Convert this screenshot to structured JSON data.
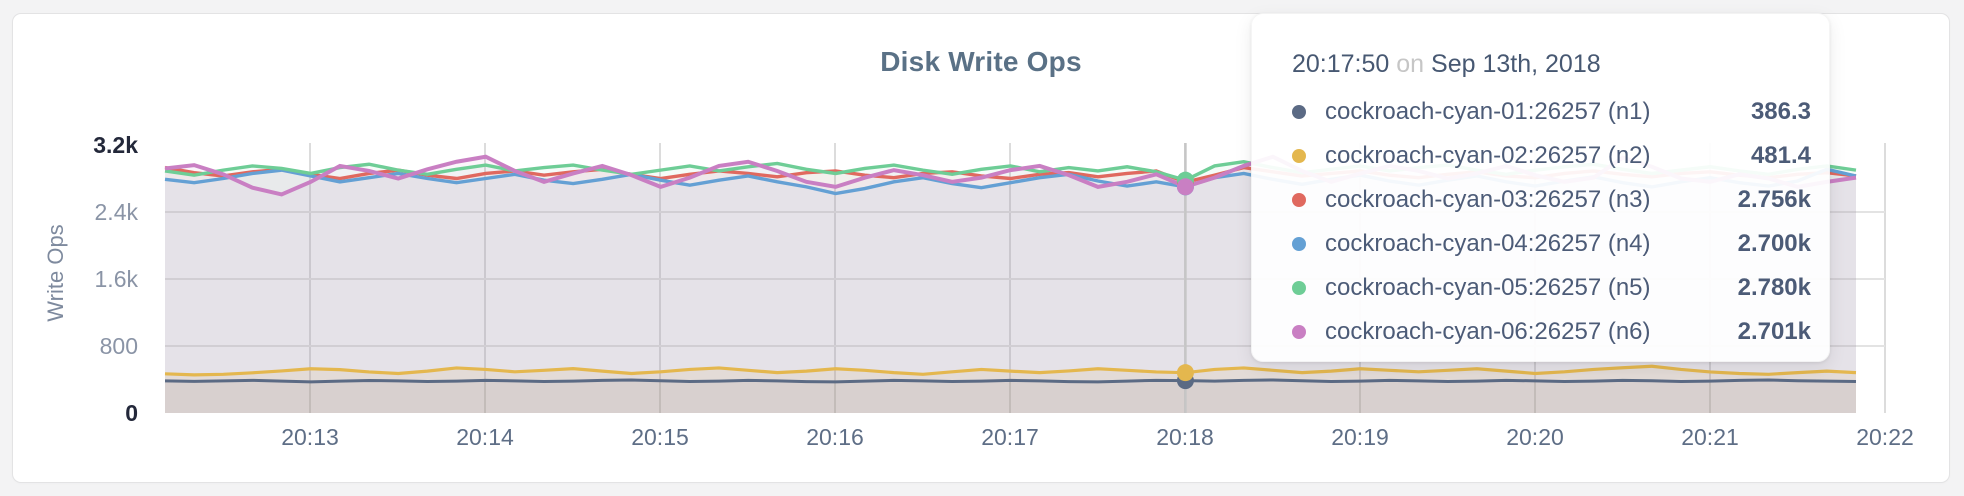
{
  "chart": {
    "title": "Disk Write Ops",
    "y_axis_label": "Write Ops",
    "y_ticks": [
      {
        "label": "3.2k",
        "value": 3200
      },
      {
        "label": "2.4k",
        "value": 2400
      },
      {
        "label": "1.6k",
        "value": 1600
      },
      {
        "label": "800",
        "value": 800
      },
      {
        "label": "0",
        "value": 0
      }
    ],
    "x_ticks": [
      "20:13",
      "20:14",
      "20:15",
      "20:16",
      "20:17",
      "20:18",
      "20:19",
      "20:20",
      "20:21",
      "20:22"
    ]
  },
  "tooltip": {
    "time": "20:17:50",
    "separator": "on",
    "date": "Sep 13th, 2018",
    "rows": [
      {
        "label": "cockroach-cyan-01:26257 (n1)",
        "value": "386.3",
        "color": "#5b6a84"
      },
      {
        "label": "cockroach-cyan-02:26257 (n2)",
        "value": "481.4",
        "color": "#e4b74e"
      },
      {
        "label": "cockroach-cyan-03:26257 (n3)",
        "value": "2.756k",
        "color": "#e0695f"
      },
      {
        "label": "cockroach-cyan-04:26257 (n4)",
        "value": "2.700k",
        "color": "#64a0d4"
      },
      {
        "label": "cockroach-cyan-05:26257 (n5)",
        "value": "2.780k",
        "color": "#6ecd96"
      },
      {
        "label": "cockroach-cyan-06:26257 (n6)",
        "value": "2.701k",
        "color": "#c97fc3"
      }
    ]
  },
  "chart_data": {
    "type": "line",
    "title": "Disk Write Ops",
    "xlabel": "",
    "ylabel": "Write Ops",
    "ylim": [
      0,
      3200
    ],
    "grid": true,
    "x_start_time": "20:12:00",
    "x_step_seconds": 10,
    "x_tick_labels": [
      "20:13",
      "20:14",
      "20:15",
      "20:16",
      "20:17",
      "20:18",
      "20:19",
      "20:20",
      "20:21",
      "20:22"
    ],
    "hover": {
      "index": 35,
      "time": "20:17:50",
      "date": "Sep 13th, 2018"
    },
    "series": [
      {
        "name": "cockroach-cyan-01:26257 (n1)",
        "color": "#5b6a84",
        "fill_opacity": 0.1,
        "hover_value": 386.3,
        "values": [
          383,
          377,
          384,
          390,
          381,
          372,
          380,
          388,
          384,
          376,
          381,
          389,
          384,
          376,
          380,
          389,
          394,
          385,
          376,
          381,
          389,
          384,
          375,
          371,
          380,
          389,
          384,
          376,
          381,
          389,
          384,
          375,
          371,
          381,
          390,
          386.3,
          381,
          390,
          394,
          385,
          376,
          381,
          389,
          384,
          376,
          381,
          389,
          384,
          376,
          381,
          390,
          385,
          376,
          381,
          390,
          394,
          385,
          380,
          376
        ]
      },
      {
        "name": "cockroach-cyan-02:26257 (n2)",
        "color": "#e4b74e",
        "fill_opacity": 0.12,
        "hover_value": 481.4,
        "values": [
          468,
          455,
          462,
          480,
          502,
          528,
          518,
          490,
          472,
          500,
          538,
          520,
          492,
          510,
          530,
          500,
          472,
          492,
          520,
          538,
          510,
          482,
          500,
          528,
          510,
          482,
          462,
          492,
          520,
          500,
          482,
          502,
          528,
          510,
          490,
          481.4,
          520,
          538,
          510,
          482,
          500,
          528,
          510,
          492,
          510,
          528,
          500,
          472,
          492,
          520,
          540,
          558,
          520,
          490,
          472,
          462,
          482,
          500,
          482
        ]
      },
      {
        "name": "cockroach-cyan-03:26257 (n3)",
        "color": "#e0695f",
        "fill_opacity": 0.07,
        "hover_value": 2756,
        "values": [
          2930,
          2870,
          2830,
          2880,
          2910,
          2850,
          2800,
          2860,
          2900,
          2840,
          2800,
          2860,
          2890,
          2840,
          2880,
          2910,
          2850,
          2800,
          2850,
          2890,
          2860,
          2820,
          2870,
          2890,
          2840,
          2810,
          2860,
          2880,
          2830,
          2800,
          2850,
          2870,
          2820,
          2860,
          2890,
          2756,
          2840,
          2930,
          2880,
          2830,
          2860,
          2890,
          2840,
          2810,
          2850,
          2880,
          2830,
          2810,
          2860,
          2890,
          2850,
          2820,
          2860,
          2880,
          2840,
          2810,
          2850,
          2870,
          2830
        ]
      },
      {
        "name": "cockroach-cyan-04:26257 (n4)",
        "color": "#64a0d4",
        "fill_opacity": 0.07,
        "hover_value": 2700,
        "values": [
          2790,
          2750,
          2800,
          2860,
          2900,
          2830,
          2760,
          2810,
          2860,
          2800,
          2750,
          2800,
          2850,
          2780,
          2740,
          2790,
          2850,
          2780,
          2720,
          2780,
          2830,
          2760,
          2700,
          2620,
          2680,
          2760,
          2810,
          2740,
          2690,
          2750,
          2810,
          2850,
          2770,
          2710,
          2760,
          2700,
          2810,
          2860,
          2790,
          2730,
          2790,
          2840,
          2770,
          2720,
          2780,
          2830,
          2760,
          2710,
          2770,
          2820,
          2750,
          2700,
          2760,
          2810,
          2750,
          2710,
          2770,
          2910,
          2830
        ]
      },
      {
        "name": "cockroach-cyan-05:26257 (n5)",
        "color": "#6ecd96",
        "fill_opacity": 0.07,
        "hover_value": 2780,
        "values": [
          2890,
          2840,
          2900,
          2950,
          2920,
          2860,
          2930,
          2970,
          2900,
          2850,
          2910,
          2960,
          2890,
          2930,
          2960,
          2900,
          2850,
          2900,
          2950,
          2890,
          2940,
          2980,
          2910,
          2860,
          2920,
          2960,
          2900,
          2850,
          2910,
          2950,
          2880,
          2930,
          2890,
          2940,
          2880,
          2780,
          2950,
          3000,
          2930,
          2870,
          2910,
          2950,
          2890,
          2930,
          2960,
          2900,
          2850,
          2900,
          2940,
          2970,
          2910,
          2860,
          2900,
          2940,
          2890,
          2850,
          2910,
          2950,
          2900
        ]
      },
      {
        "name": "cockroach-cyan-06:26257 (n6)",
        "color": "#c97fc3",
        "fill_opacity": 0.07,
        "hover_value": 2701,
        "values": [
          2920,
          2960,
          2850,
          2690,
          2610,
          2760,
          2950,
          2890,
          2800,
          2910,
          3000,
          3060,
          2890,
          2760,
          2860,
          2950,
          2840,
          2700,
          2810,
          2950,
          3000,
          2890,
          2760,
          2700,
          2810,
          2900,
          2840,
          2760,
          2810,
          2900,
          2950,
          2840,
          2700,
          2760,
          2850,
          2701,
          2810,
          2950,
          3060,
          2890,
          2760,
          2860,
          2950,
          2890,
          2800,
          2860,
          2950,
          2840,
          2760,
          2810,
          3050,
          2940,
          2800,
          2760,
          2850,
          2800,
          2700,
          2760,
          2810
        ]
      }
    ]
  }
}
